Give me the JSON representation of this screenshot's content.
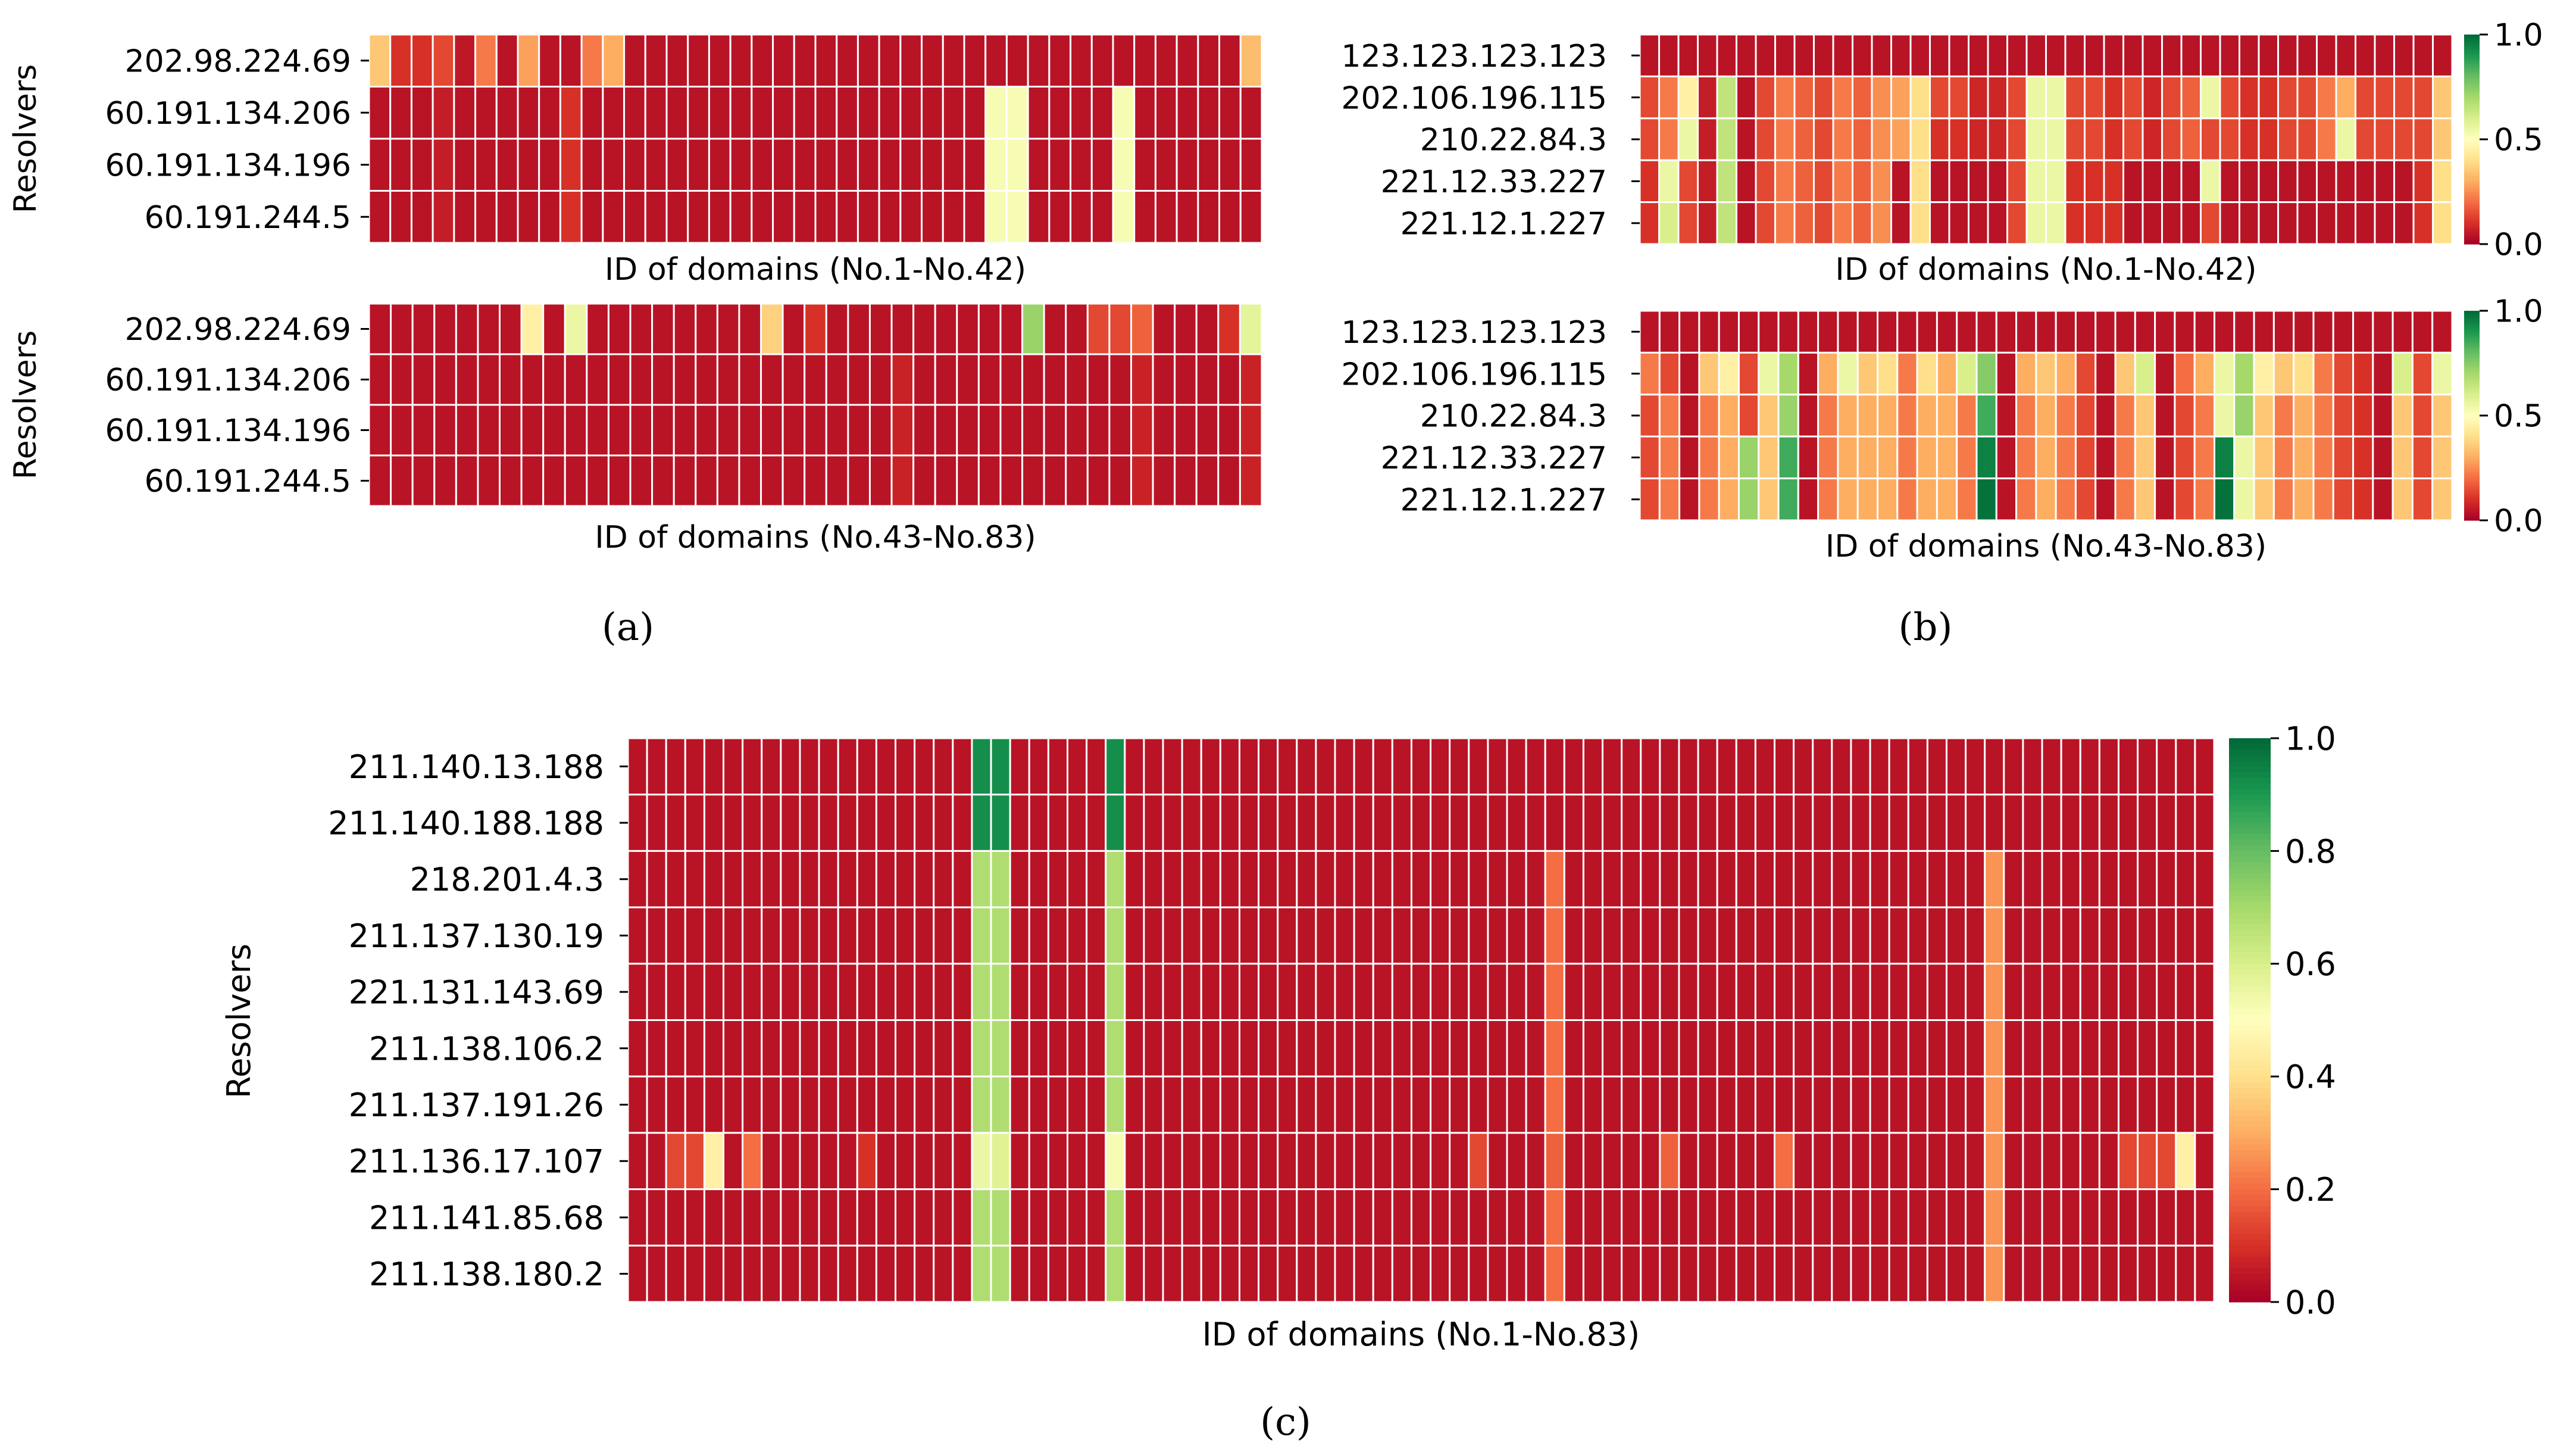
{
  "chart_data": [
    {
      "type": "heatmap",
      "panel": "(a)",
      "ylabel": "Resolvers",
      "xlabel": "ID of domains (No.1-No.42)",
      "rows": [
        "202.98.224.69",
        "60.191.134.206",
        "60.191.134.196",
        "60.191.244.5"
      ],
      "n_cols": 42,
      "colorbar": false,
      "values": [
        [
          0.35,
          0.1,
          0.06,
          0.14,
          0.05,
          0.22,
          0.04,
          0.28,
          0.04,
          0.04,
          0.22,
          0.3,
          0.04,
          0.04,
          0.04,
          0.04,
          0.04,
          0.04,
          0.04,
          0.04,
          0.04,
          0.04,
          0.04,
          0.04,
          0.04,
          0.04,
          0.04,
          0.04,
          0.04,
          0.04,
          0.04,
          0.04,
          0.04,
          0.04,
          0.04,
          0.04,
          0.04,
          0.04,
          0.04,
          0.04,
          0.04,
          0.33
        ],
        [
          0.04,
          0.04,
          0.04,
          0.06,
          0.04,
          0.04,
          0.04,
          0.04,
          0.04,
          0.04,
          0.04,
          0.04,
          0.04,
          0.04,
          0.04,
          0.04,
          0.04,
          0.04,
          0.04,
          0.04,
          0.04,
          0.04,
          0.04,
          0.04,
          0.04,
          0.04,
          0.04,
          0.04,
          0.04,
          0.04,
          0.04,
          0.04,
          0.04,
          0.04,
          0.04,
          0.04,
          0.04,
          0.04,
          0.04,
          0.04,
          0.04,
          0.04
        ],
        [
          0.04,
          0.04,
          0.04,
          0.06,
          0.04,
          0.04,
          0.04,
          0.04,
          0.04,
          0.04,
          0.04,
          0.04,
          0.04,
          0.04,
          0.04,
          0.04,
          0.04,
          0.04,
          0.04,
          0.04,
          0.04,
          0.04,
          0.04,
          0.04,
          0.04,
          0.04,
          0.04,
          0.04,
          0.04,
          0.04,
          0.04,
          0.04,
          0.04,
          0.04,
          0.04,
          0.04,
          0.04,
          0.04,
          0.04,
          0.04,
          0.04,
          0.04
        ],
        [
          0.04,
          0.04,
          0.04,
          0.06,
          0.04,
          0.04,
          0.04,
          0.04,
          0.04,
          0.04,
          0.04,
          0.04,
          0.04,
          0.04,
          0.04,
          0.04,
          0.04,
          0.04,
          0.04,
          0.04,
          0.04,
          0.04,
          0.04,
          0.04,
          0.04,
          0.04,
          0.04,
          0.04,
          0.04,
          0.04,
          0.04,
          0.04,
          0.04,
          0.04,
          0.04,
          0.04,
          0.04,
          0.04,
          0.04,
          0.04,
          0.04,
          0.04
        ]
      ],
      "highlights": [
        {
          "cols": [
            11,
            12
          ],
          "value": 0.52
        },
        {
          "cols": [
            17
          ],
          "value": 0.52
        }
      ],
      "secondary_highlights": [
        {
          "row": 1,
          "col": 9,
          "value": 0.1
        },
        {
          "row": 2,
          "col": 9,
          "value": 0.1
        },
        {
          "row": 3,
          "col": 9,
          "value": 0.1
        },
        {
          "row": 0,
          "col": 2,
          "value": 0.1
        }
      ],
      "vmin": 0.0,
      "vmax": 1.0
    },
    {
      "type": "heatmap",
      "panel": "(a)",
      "ylabel": "Resolvers",
      "xlabel": "ID of domains (No.43-No.83)",
      "rows": [
        "202.98.224.69",
        "60.191.134.206",
        "60.191.134.196",
        "60.191.244.5"
      ],
      "n_cols": 41,
      "colorbar": false,
      "values": [
        [
          0.04,
          0.04,
          0.04,
          0.04,
          0.04,
          0.04,
          0.04,
          0.45,
          0.04,
          0.55,
          0.04,
          0.04,
          0.04,
          0.04,
          0.04,
          0.04,
          0.04,
          0.04,
          0.37,
          0.04,
          0.1,
          0.04,
          0.04,
          0.04,
          0.04,
          0.04,
          0.04,
          0.04,
          0.04,
          0.04,
          0.72,
          0.04,
          0.04,
          0.14,
          0.14,
          0.18,
          0.04,
          0.04,
          0.04,
          0.1,
          0.57
        ],
        [
          0.04,
          0.04,
          0.04,
          0.04,
          0.04,
          0.04,
          0.04,
          0.04,
          0.04,
          0.04,
          0.04,
          0.04,
          0.04,
          0.04,
          0.04,
          0.04,
          0.04,
          0.04,
          0.04,
          0.04,
          0.04,
          0.04,
          0.04,
          0.04,
          0.07,
          0.04,
          0.04,
          0.04,
          0.04,
          0.04,
          0.04,
          0.04,
          0.04,
          0.04,
          0.04,
          0.07,
          0.04,
          0.04,
          0.04,
          0.04,
          0.07
        ],
        [
          0.04,
          0.04,
          0.04,
          0.04,
          0.04,
          0.04,
          0.04,
          0.04,
          0.04,
          0.04,
          0.04,
          0.04,
          0.04,
          0.04,
          0.04,
          0.04,
          0.04,
          0.04,
          0.04,
          0.04,
          0.04,
          0.04,
          0.04,
          0.04,
          0.07,
          0.04,
          0.04,
          0.04,
          0.04,
          0.04,
          0.04,
          0.04,
          0.04,
          0.04,
          0.04,
          0.07,
          0.04,
          0.04,
          0.04,
          0.04,
          0.07
        ],
        [
          0.04,
          0.04,
          0.04,
          0.04,
          0.04,
          0.04,
          0.04,
          0.04,
          0.04,
          0.04,
          0.04,
          0.04,
          0.04,
          0.04,
          0.04,
          0.04,
          0.04,
          0.04,
          0.04,
          0.04,
          0.04,
          0.04,
          0.04,
          0.04,
          0.07,
          0.04,
          0.04,
          0.04,
          0.04,
          0.04,
          0.04,
          0.04,
          0.04,
          0.04,
          0.04,
          0.07,
          0.04,
          0.04,
          0.04,
          0.04,
          0.07
        ]
      ],
      "vmin": 0.0,
      "vmax": 1.0
    },
    {
      "type": "heatmap",
      "panel": "(b)",
      "ylabel": "",
      "xlabel": "ID of domains (No.1-No.42)",
      "rows": [
        "123.123.123.123",
        "202.106.196.115",
        "210.22.84.3",
        "221.12.33.227",
        "221.12.1.227"
      ],
      "n_cols": 42,
      "colorbar": true,
      "cbar_ticks": [
        "0.0",
        "0.5",
        "1.0"
      ],
      "values": [
        [
          0.04,
          0.04,
          0.04,
          0.04,
          0.04,
          0.04,
          0.04,
          0.04,
          0.04,
          0.04,
          0.04,
          0.04,
          0.04,
          0.04,
          0.04,
          0.04,
          0.04,
          0.04,
          0.04,
          0.04,
          0.04,
          0.04,
          0.04,
          0.04,
          0.04,
          0.04,
          0.04,
          0.04,
          0.04,
          0.04,
          0.04,
          0.04,
          0.04,
          0.04,
          0.04,
          0.04,
          0.04,
          0.04,
          0.04,
          0.04,
          0.04,
          0.04
        ],
        [
          0.14,
          0.22,
          0.45,
          0.06,
          0.65,
          0.04,
          0.14,
          0.22,
          0.18,
          0.14,
          0.22,
          0.18,
          0.25,
          0.28,
          0.4,
          0.14,
          0.14,
          0.08,
          0.08,
          0.14,
          0.55,
          0.55,
          0.14,
          0.14,
          0.1,
          0.14,
          0.08,
          0.14,
          0.18,
          0.55,
          0.14,
          0.1,
          0.1,
          0.14,
          0.14,
          0.22,
          0.3,
          0.14,
          0.14,
          0.14,
          0.14,
          0.35
        ],
        [
          0.14,
          0.22,
          0.55,
          0.06,
          0.65,
          0.04,
          0.14,
          0.22,
          0.18,
          0.14,
          0.22,
          0.18,
          0.25,
          0.28,
          0.4,
          0.1,
          0.1,
          0.08,
          0.08,
          0.14,
          0.55,
          0.55,
          0.14,
          0.14,
          0.1,
          0.14,
          0.08,
          0.14,
          0.18,
          0.14,
          0.14,
          0.1,
          0.1,
          0.14,
          0.14,
          0.22,
          0.55,
          0.14,
          0.14,
          0.14,
          0.14,
          0.35
        ],
        [
          0.1,
          0.55,
          0.14,
          0.06,
          0.65,
          0.04,
          0.14,
          0.22,
          0.18,
          0.14,
          0.22,
          0.18,
          0.25,
          0.04,
          0.4,
          0.04,
          0.04,
          0.04,
          0.04,
          0.14,
          0.55,
          0.55,
          0.1,
          0.1,
          0.1,
          0.04,
          0.04,
          0.04,
          0.04,
          0.55,
          0.04,
          0.04,
          0.04,
          0.04,
          0.04,
          0.04,
          0.04,
          0.04,
          0.04,
          0.04,
          0.1,
          0.4
        ],
        [
          0.1,
          0.6,
          0.14,
          0.06,
          0.65,
          0.04,
          0.14,
          0.22,
          0.18,
          0.14,
          0.22,
          0.18,
          0.25,
          0.04,
          0.4,
          0.04,
          0.04,
          0.04,
          0.04,
          0.14,
          0.55,
          0.55,
          0.1,
          0.1,
          0.1,
          0.04,
          0.04,
          0.04,
          0.04,
          0.14,
          0.04,
          0.04,
          0.04,
          0.04,
          0.04,
          0.04,
          0.04,
          0.04,
          0.04,
          0.04,
          0.1,
          0.4
        ]
      ],
      "vmin": 0.0,
      "vmax": 1.0
    },
    {
      "type": "heatmap",
      "panel": "(b)",
      "ylabel": "",
      "xlabel": "ID of domains (No.43-No.83)",
      "rows": [
        "123.123.123.123",
        "202.106.196.115",
        "210.22.84.3",
        "221.12.33.227",
        "221.12.1.227"
      ],
      "n_cols": 41,
      "colorbar": true,
      "cbar_ticks": [
        "0.0",
        "0.5",
        "1.0"
      ],
      "values": [
        [
          0.04,
          0.04,
          0.04,
          0.04,
          0.04,
          0.04,
          0.04,
          0.04,
          0.04,
          0.04,
          0.04,
          0.04,
          0.04,
          0.04,
          0.04,
          0.04,
          0.04,
          0.04,
          0.04,
          0.04,
          0.04,
          0.04,
          0.04,
          0.04,
          0.04,
          0.04,
          0.04,
          0.04,
          0.04,
          0.04,
          0.04,
          0.04,
          0.04,
          0.04,
          0.04,
          0.04,
          0.04,
          0.04,
          0.04,
          0.04,
          0.04
        ],
        [
          0.22,
          0.14,
          0.04,
          0.35,
          0.45,
          0.14,
          0.55,
          0.7,
          0.04,
          0.3,
          0.55,
          0.35,
          0.4,
          0.22,
          0.4,
          0.3,
          0.6,
          0.75,
          0.04,
          0.3,
          0.35,
          0.3,
          0.14,
          0.04,
          0.35,
          0.6,
          0.04,
          0.2,
          0.3,
          0.55,
          0.7,
          0.45,
          0.35,
          0.4,
          0.22,
          0.14,
          0.1,
          0.04,
          0.6,
          0.14,
          0.55
        ],
        [
          0.14,
          0.22,
          0.04,
          0.22,
          0.3,
          0.14,
          0.35,
          0.72,
          0.04,
          0.22,
          0.3,
          0.3,
          0.3,
          0.22,
          0.3,
          0.3,
          0.22,
          0.85,
          0.04,
          0.22,
          0.3,
          0.22,
          0.14,
          0.04,
          0.22,
          0.35,
          0.04,
          0.14,
          0.22,
          0.55,
          0.72,
          0.35,
          0.22,
          0.3,
          0.22,
          0.14,
          0.1,
          0.04,
          0.35,
          0.14,
          0.35
        ],
        [
          0.14,
          0.22,
          0.04,
          0.22,
          0.3,
          0.72,
          0.35,
          0.85,
          0.04,
          0.22,
          0.3,
          0.3,
          0.3,
          0.22,
          0.3,
          0.3,
          0.22,
          0.95,
          0.04,
          0.22,
          0.3,
          0.22,
          0.14,
          0.04,
          0.22,
          0.35,
          0.04,
          0.14,
          0.22,
          0.95,
          0.55,
          0.35,
          0.22,
          0.3,
          0.22,
          0.14,
          0.1,
          0.04,
          0.35,
          0.14,
          0.35
        ],
        [
          0.14,
          0.22,
          0.04,
          0.22,
          0.3,
          0.72,
          0.35,
          0.85,
          0.04,
          0.22,
          0.3,
          0.3,
          0.3,
          0.22,
          0.3,
          0.3,
          0.22,
          0.98,
          0.04,
          0.22,
          0.3,
          0.22,
          0.14,
          0.04,
          0.22,
          0.35,
          0.04,
          0.14,
          0.22,
          0.98,
          0.55,
          0.35,
          0.22,
          0.3,
          0.22,
          0.14,
          0.1,
          0.04,
          0.35,
          0.14,
          0.35
        ]
      ],
      "vmin": 0.0,
      "vmax": 1.0
    },
    {
      "type": "heatmap",
      "panel": "(c)",
      "ylabel": "Resolvers",
      "xlabel": "ID of domains (No.1-No.83)",
      "rows": [
        "211.140.13.188",
        "211.140.188.188",
        "218.201.4.3",
        "211.137.130.19",
        "221.131.143.69",
        "211.138.106.2",
        "211.137.191.26",
        "211.136.17.107",
        "211.141.85.68",
        "211.138.180.2"
      ],
      "n_cols": 83,
      "colorbar": true,
      "cbar_ticks": [
        "0.0",
        "0.2",
        "0.4",
        "0.6",
        "0.8",
        "1.0"
      ],
      "base_value": 0.04,
      "column_overrides": [
        {
          "col": 18,
          "rows": [
            0,
            1
          ],
          "value": 0.92
        },
        {
          "col": 18,
          "rows": [
            2,
            3,
            4,
            5,
            6,
            8,
            9
          ],
          "value": 0.68
        },
        {
          "col": 18,
          "rows": [
            7
          ],
          "value": 0.55
        },
        {
          "col": 19,
          "rows": [
            0,
            1
          ],
          "value": 0.92
        },
        {
          "col": 19,
          "rows": [
            2,
            3,
            4,
            5,
            6,
            8,
            9
          ],
          "value": 0.68
        },
        {
          "col": 19,
          "rows": [
            7
          ],
          "value": 0.58
        },
        {
          "col": 25,
          "rows": [
            0,
            1
          ],
          "value": 0.92
        },
        {
          "col": 25,
          "rows": [
            2,
            3,
            4,
            5,
            6,
            8,
            9
          ],
          "value": 0.68
        },
        {
          "col": 25,
          "rows": [
            7
          ],
          "value": 0.52
        },
        {
          "col": 48,
          "rows": [
            2,
            3,
            4,
            5,
            6,
            8,
            9
          ],
          "value": 0.2
        },
        {
          "col": 71,
          "rows": [
            2,
            3,
            4,
            5,
            6,
            8,
            9
          ],
          "value": 0.26
        }
      ],
      "row7_values": [
        0.04,
        0.04,
        0.14,
        0.14,
        0.45,
        0.04,
        0.2,
        0.04,
        0.04,
        0.04,
        0.04,
        0.04,
        0.1,
        0.04,
        0.04,
        0.04,
        0.04,
        0.04,
        0.55,
        0.58,
        0.04,
        0.04,
        0.04,
        0.04,
        0.04,
        0.52,
        0.04,
        0.04,
        0.04,
        0.04,
        0.04,
        0.04,
        0.04,
        0.04,
        0.04,
        0.04,
        0.04,
        0.04,
        0.04,
        0.04,
        0.04,
        0.04,
        0.04,
        0.04,
        0.14,
        0.04,
        0.04,
        0.04,
        0.18,
        0.04,
        0.04,
        0.04,
        0.04,
        0.04,
        0.18,
        0.04,
        0.04,
        0.04,
        0.04,
        0.04,
        0.2,
        0.04,
        0.04,
        0.04,
        0.04,
        0.04,
        0.04,
        0.04,
        0.04,
        0.04,
        0.04,
        0.26,
        0.04,
        0.04,
        0.04,
        0.04,
        0.04,
        0.04,
        0.14,
        0.14,
        0.14,
        0.45,
        0.04
      ],
      "vmin": 0.0,
      "vmax": 1.0
    }
  ],
  "panels": {
    "a": "(a)",
    "b": "(b)",
    "c": "(c)"
  },
  "colormap": [
    "#a50026",
    "#d73027",
    "#f46d43",
    "#fdae61",
    "#fee08b",
    "#ffffbf",
    "#d9ef8b",
    "#a6d96a",
    "#66bd63",
    "#1a9850",
    "#006837"
  ]
}
